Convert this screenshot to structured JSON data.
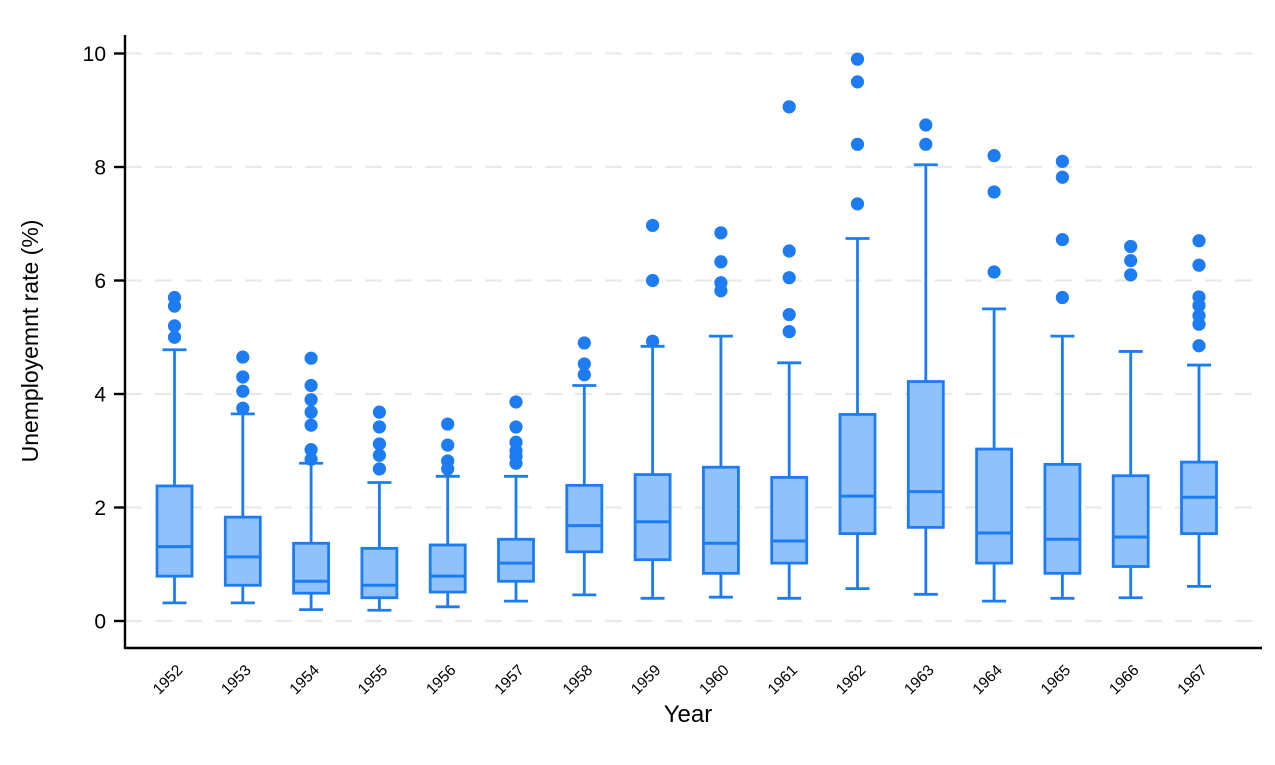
{
  "chart_data": {
    "type": "boxplot",
    "title": "",
    "xlabel": "Year",
    "ylabel": "Unemployemnt rate (%)",
    "ylim": [
      0,
      10.5
    ],
    "yticks": [
      0,
      2,
      4,
      6,
      8,
      10
    ],
    "grid": "horizontal-dashed",
    "legend": "none",
    "categories": [
      "1952",
      "1953",
      "1954",
      "1955",
      "1956",
      "1957",
      "1958",
      "1959",
      "1960",
      "1961",
      "1962",
      "1963",
      "1964",
      "1965",
      "1966",
      "1967"
    ],
    "series": [
      {
        "label": "1952",
        "whislo": 0.32,
        "q1": 0.79,
        "med": 1.31,
        "q3": 2.38,
        "whishi": 4.78,
        "outliers": [
          5.7,
          5.55,
          5.2,
          5.0
        ]
      },
      {
        "label": "1953",
        "whislo": 0.32,
        "q1": 0.63,
        "med": 1.13,
        "q3": 1.83,
        "whishi": 3.65,
        "outliers": [
          4.65,
          4.3,
          4.05,
          3.75
        ]
      },
      {
        "label": "1954",
        "whislo": 0.2,
        "q1": 0.49,
        "med": 0.7,
        "q3": 1.37,
        "whishi": 2.78,
        "outliers": [
          4.63,
          4.15,
          3.9,
          3.68,
          3.45,
          3.02,
          2.85
        ]
      },
      {
        "label": "1955",
        "whislo": 0.19,
        "q1": 0.41,
        "med": 0.63,
        "q3": 1.28,
        "whishi": 2.44,
        "outliers": [
          3.68,
          3.42,
          3.12,
          2.92,
          2.68
        ]
      },
      {
        "label": "1956",
        "whislo": 0.25,
        "q1": 0.51,
        "med": 0.79,
        "q3": 1.34,
        "whishi": 2.55,
        "outliers": [
          3.47,
          3.1,
          2.82,
          2.68
        ]
      },
      {
        "label": "1957",
        "whislo": 0.35,
        "q1": 0.7,
        "med": 1.02,
        "q3": 1.44,
        "whishi": 2.55,
        "outliers": [
          3.86,
          3.42,
          3.15,
          3.0,
          2.9,
          2.78
        ]
      },
      {
        "label": "1958",
        "whislo": 0.46,
        "q1": 1.22,
        "med": 1.68,
        "q3": 2.39,
        "whishi": 4.15,
        "outliers": [
          4.9,
          4.53,
          4.34
        ]
      },
      {
        "label": "1959",
        "whislo": 0.4,
        "q1": 1.08,
        "med": 1.75,
        "q3": 2.58,
        "whishi": 4.84,
        "outliers": [
          6.97,
          6.0,
          4.93
        ]
      },
      {
        "label": "1960",
        "whislo": 0.42,
        "q1": 0.84,
        "med": 1.37,
        "q3": 2.71,
        "whishi": 5.02,
        "outliers": [
          6.84,
          6.33,
          5.96,
          5.82
        ]
      },
      {
        "label": "1961",
        "whislo": 0.4,
        "q1": 1.02,
        "med": 1.41,
        "q3": 2.53,
        "whishi": 4.55,
        "outliers": [
          9.06,
          6.52,
          6.05,
          5.4,
          5.1
        ]
      },
      {
        "label": "1962",
        "whislo": 0.57,
        "q1": 1.54,
        "med": 2.2,
        "q3": 3.64,
        "whishi": 6.74,
        "outliers": [
          9.9,
          9.5,
          8.4,
          7.35
        ]
      },
      {
        "label": "1963",
        "whislo": 0.47,
        "q1": 1.65,
        "med": 2.28,
        "q3": 4.22,
        "whishi": 8.04,
        "outliers": [
          8.74,
          8.4
        ]
      },
      {
        "label": "1964",
        "whislo": 0.35,
        "q1": 1.02,
        "med": 1.55,
        "q3": 3.03,
        "whishi": 5.5,
        "outliers": [
          8.2,
          7.56,
          6.15
        ]
      },
      {
        "label": "1965",
        "whislo": 0.4,
        "q1": 0.84,
        "med": 1.44,
        "q3": 2.76,
        "whishi": 5.02,
        "outliers": [
          8.1,
          7.82,
          6.72,
          5.7
        ]
      },
      {
        "label": "1966",
        "whislo": 0.41,
        "q1": 0.96,
        "med": 1.48,
        "q3": 2.56,
        "whishi": 4.75,
        "outliers": [
          6.6,
          6.35,
          6.1
        ]
      },
      {
        "label": "1967",
        "whislo": 0.61,
        "q1": 1.54,
        "med": 2.18,
        "q3": 2.8,
        "whishi": 4.51,
        "outliers": [
          6.7,
          6.27,
          5.71,
          5.56,
          5.38,
          5.23,
          4.85
        ]
      }
    ],
    "colors": {
      "box_fill": "#8fc2fa",
      "box_stroke": "#1e7cf2",
      "outlier_dot": "#1e7cf2",
      "gridline": "#e9e9e9",
      "axis": "#000000",
      "background": "#ffffff"
    }
  }
}
